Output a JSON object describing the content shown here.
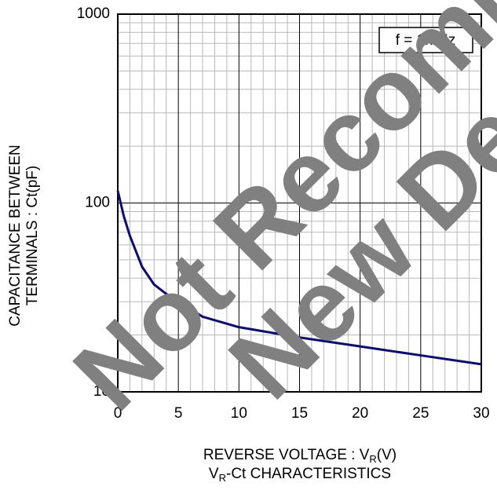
{
  "chart_data": {
    "type": "line",
    "title": [
      "V",
      "R",
      "-Ct CHARACTERISTICS"
    ],
    "xlabel": [
      "REVERSE VOLTAGE : V",
      "R",
      "(V)"
    ],
    "ylabel": [
      "CAPACITANCE BETWEEN",
      "TERMINALS : Ct(pF)"
    ],
    "annotation": "f = 1MHz",
    "watermark": [
      "Not Recommended",
      "New Design"
    ],
    "x": [
      0,
      0.5,
      1,
      2,
      3,
      4,
      5,
      7,
      10,
      15,
      20,
      25,
      30
    ],
    "series": [
      {
        "name": "Ct",
        "color": "#0c0c6e",
        "values": [
          116,
          85,
          67,
          46,
          37,
          33,
          30,
          25,
          22,
          19.4,
          17.4,
          15.6,
          14
        ]
      }
    ],
    "xlim": [
      0,
      30
    ],
    "xticks": [
      0,
      5,
      10,
      15,
      20,
      25,
      30
    ],
    "minor_xticks": [
      1,
      2,
      3,
      4,
      6,
      7,
      8,
      9,
      11,
      12,
      13,
      14,
      16,
      17,
      18,
      19,
      21,
      22,
      23,
      24,
      26,
      27,
      28,
      29
    ],
    "ylim": [
      10,
      1000
    ],
    "yticks": [
      10,
      100,
      1000
    ],
    "minor_yticks": [
      20,
      30,
      40,
      50,
      60,
      70,
      80,
      90,
      200,
      300,
      400,
      500,
      600,
      700,
      800,
      900
    ],
    "ylog": true,
    "grid": true
  }
}
